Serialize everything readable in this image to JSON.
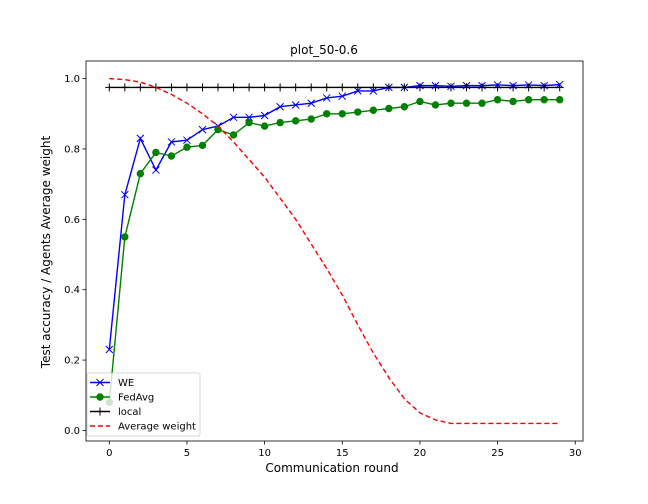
{
  "chart_data": {
    "type": "line",
    "title": "plot_50-0.6",
    "xlabel": "Communication round",
    "ylabel": "Test accuracy / Agents Average weight",
    "xlim": [
      -1.5,
      30.5
    ],
    "ylim": [
      -0.03,
      1.05
    ],
    "xticks": [
      0,
      5,
      10,
      15,
      20,
      25,
      30
    ],
    "xtick_labels": [
      "0",
      "5",
      "10",
      "15",
      "20",
      "25",
      "30"
    ],
    "yticks": [
      0.0,
      0.2,
      0.4,
      0.6,
      0.8,
      1.0
    ],
    "ytick_labels": [
      "0.0",
      "0.2",
      "0.4",
      "0.6",
      "0.8",
      "1.0"
    ],
    "grid": false,
    "legend_position": "lower-left",
    "x": [
      0,
      1,
      2,
      3,
      4,
      5,
      6,
      7,
      8,
      9,
      10,
      11,
      12,
      13,
      14,
      15,
      16,
      17,
      18,
      19,
      20,
      21,
      22,
      23,
      24,
      25,
      26,
      27,
      28,
      29
    ],
    "series": [
      {
        "name": "WE",
        "color": "#0000ff",
        "marker": "x",
        "linestyle": "solid",
        "values": [
          0.23,
          0.67,
          0.83,
          0.74,
          0.82,
          0.825,
          0.855,
          0.865,
          0.89,
          0.89,
          0.895,
          0.92,
          0.925,
          0.93,
          0.945,
          0.95,
          0.965,
          0.965,
          0.975,
          0.975,
          0.98,
          0.98,
          0.978,
          0.98,
          0.98,
          0.982,
          0.98,
          0.982,
          0.98,
          0.983
        ]
      },
      {
        "name": "FedAvg",
        "color": "#008000",
        "marker": "o",
        "linestyle": "solid",
        "values": [
          0.08,
          0.55,
          0.73,
          0.79,
          0.78,
          0.805,
          0.81,
          0.855,
          0.84,
          0.875,
          0.865,
          0.875,
          0.88,
          0.885,
          0.9,
          0.9,
          0.905,
          0.91,
          0.915,
          0.92,
          0.935,
          0.925,
          0.93,
          0.93,
          0.93,
          0.94,
          0.935,
          0.94,
          0.94,
          0.94
        ]
      },
      {
        "name": "local",
        "color": "#000000",
        "marker": "+",
        "linestyle": "solid",
        "values": [
          0.975,
          0.975,
          0.975,
          0.975,
          0.975,
          0.975,
          0.975,
          0.975,
          0.975,
          0.975,
          0.975,
          0.975,
          0.975,
          0.975,
          0.975,
          0.975,
          0.975,
          0.975,
          0.975,
          0.975,
          0.975,
          0.975,
          0.975,
          0.975,
          0.975,
          0.975,
          0.975,
          0.975,
          0.975,
          0.975
        ]
      },
      {
        "name": "Average weight",
        "color": "#ff0000",
        "marker": "none",
        "linestyle": "dashed",
        "values": [
          1.0,
          0.997,
          0.99,
          0.975,
          0.955,
          0.93,
          0.9,
          0.865,
          0.82,
          0.77,
          0.72,
          0.66,
          0.6,
          0.53,
          0.46,
          0.385,
          0.3,
          0.22,
          0.15,
          0.09,
          0.05,
          0.03,
          0.02,
          0.02,
          0.02,
          0.02,
          0.02,
          0.02,
          0.02,
          0.02
        ]
      }
    ]
  }
}
